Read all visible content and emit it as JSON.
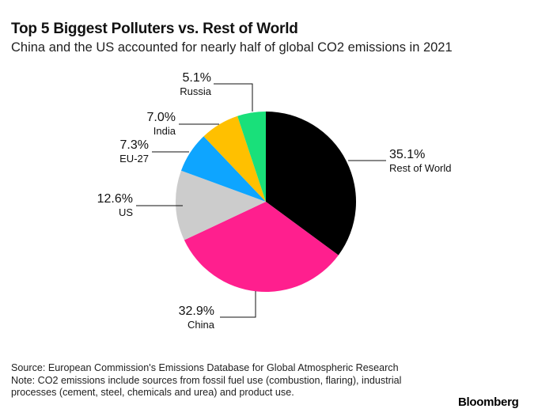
{
  "header": {
    "title": "Top 5 Biggest Polluters vs. Rest of World",
    "subtitle": "China and the US accounted for nearly half of global CO2 emissions in 2021"
  },
  "chart_data": {
    "type": "pie",
    "title": "Top 5 Biggest Polluters vs. Rest of World",
    "subtitle": "China and the US accounted for nearly half of global CO2 emissions in 2021",
    "unit": "%",
    "slices": [
      {
        "key": "rest-of-world",
        "label": "Rest of World",
        "value": 35.1,
        "display": "35.1%",
        "color": "#000000"
      },
      {
        "key": "china",
        "label": "China",
        "value": 32.9,
        "display": "32.9%",
        "color": "#ff1f8e"
      },
      {
        "key": "us",
        "label": "US",
        "value": 12.6,
        "display": "12.6%",
        "color": "#cccccc"
      },
      {
        "key": "eu-27",
        "label": "EU-27",
        "value": 7.3,
        "display": "7.3%",
        "color": "#0ea5ff"
      },
      {
        "key": "india",
        "label": "India",
        "value": 7.0,
        "display": "7.0%",
        "color": "#ffc000"
      },
      {
        "key": "russia",
        "label": "Russia",
        "value": 5.1,
        "display": "5.1%",
        "color": "#19e07a"
      }
    ]
  },
  "footer": {
    "source": "Source: European Commission's Emissions Database for Global Atmospheric Research",
    "note": "Note: CO2 emissions include sources from fossil fuel use (combustion, flaring), industrial processes (cement, steel, chemicals and urea) and product use.",
    "logo": "Bloomberg"
  }
}
